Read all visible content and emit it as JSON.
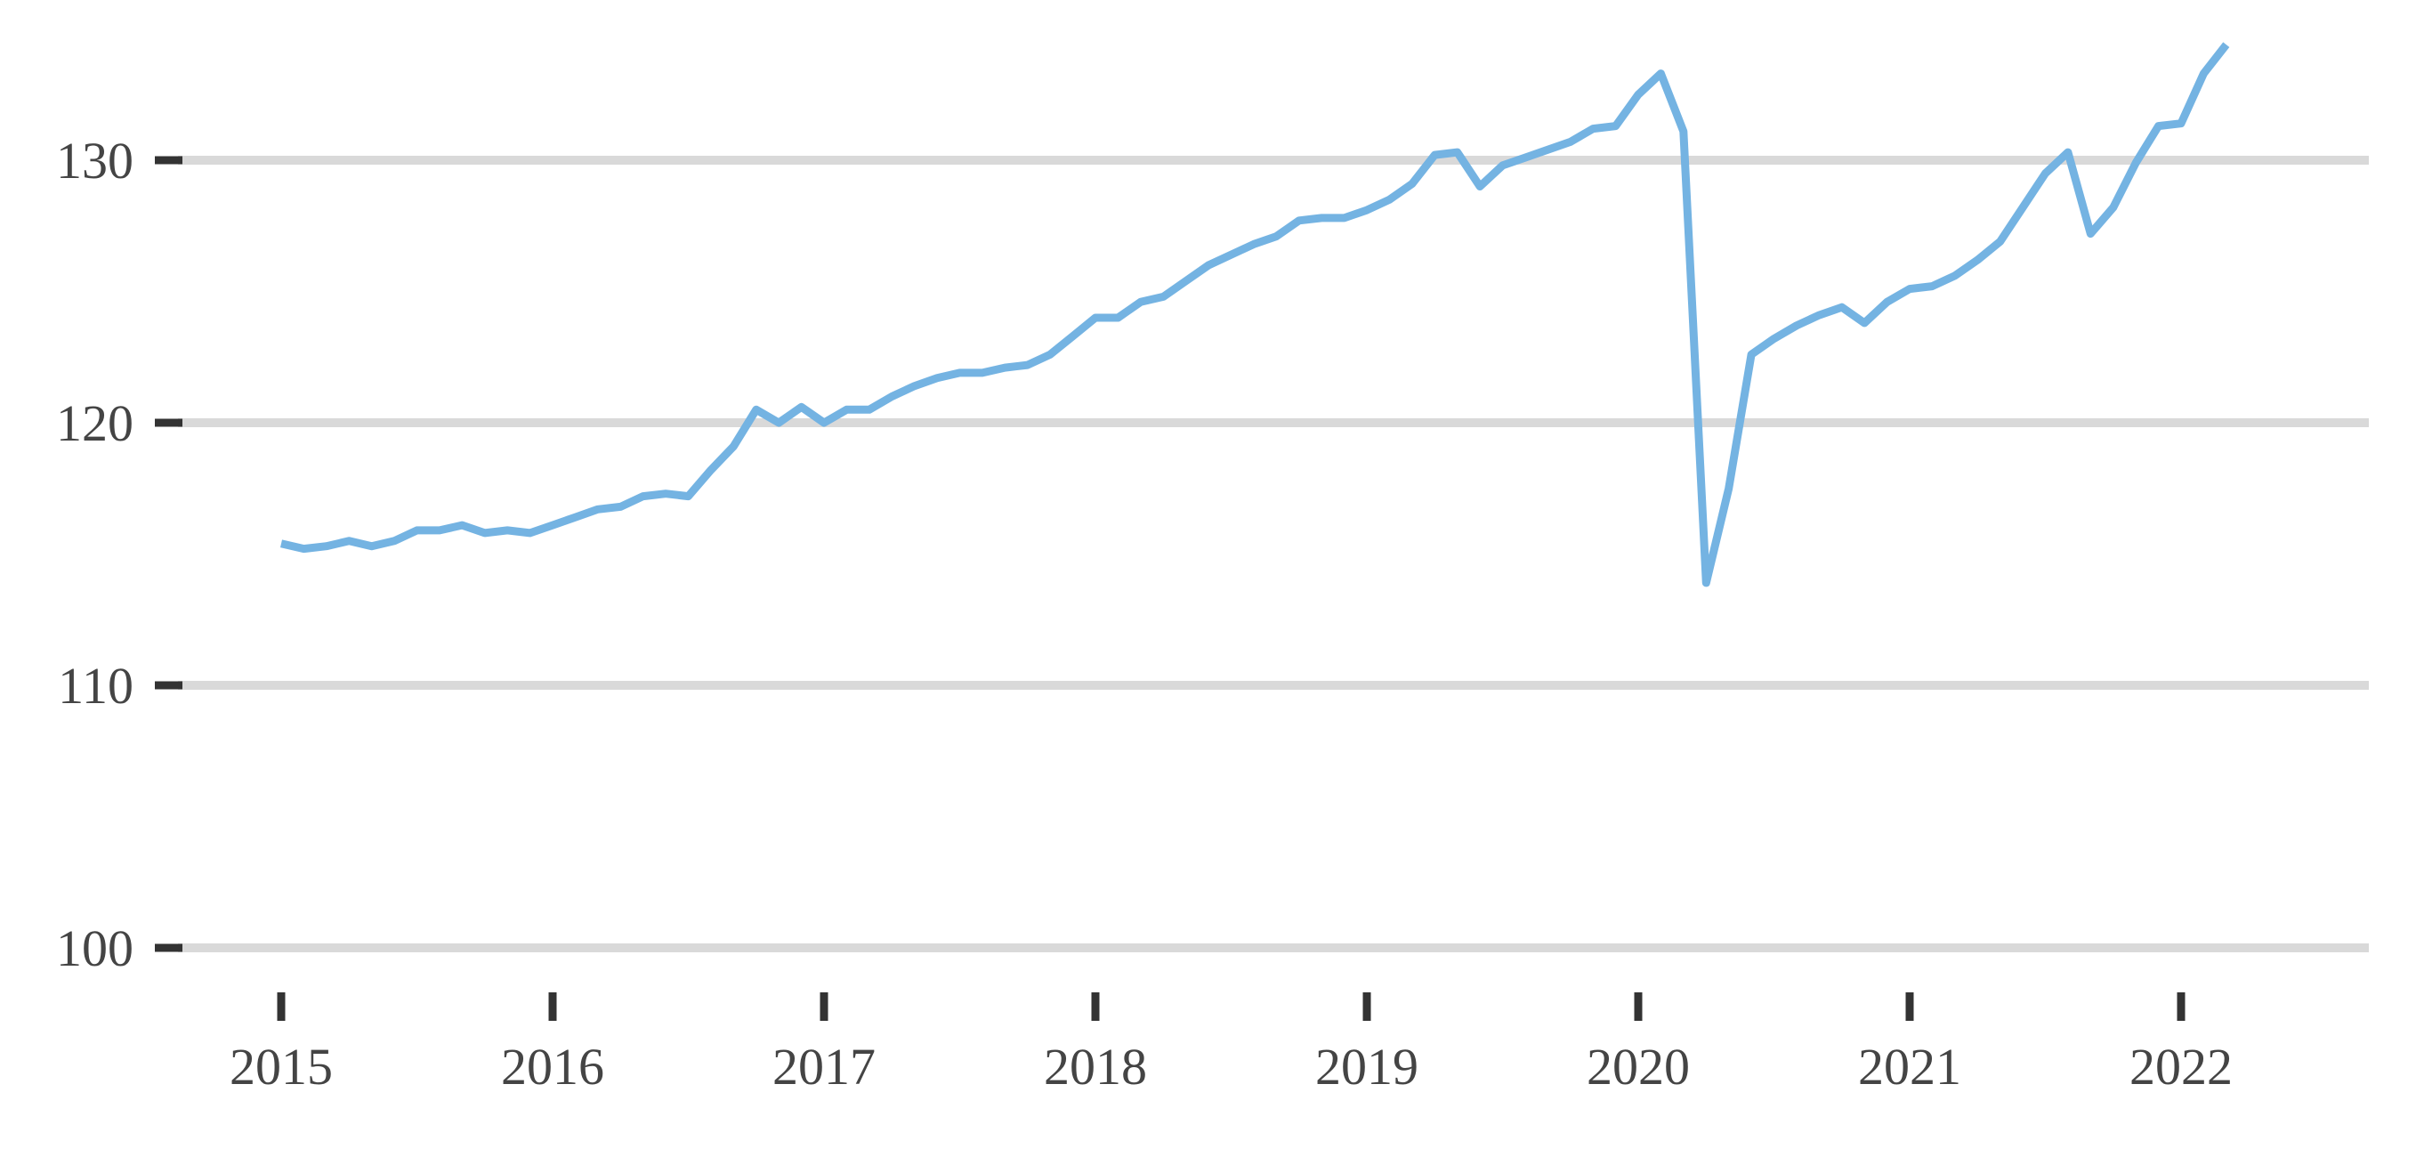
{
  "chart_data": {
    "type": "line",
    "title": "",
    "xlabel": "",
    "ylabel": "",
    "ylim": [
      100,
      135
    ],
    "yticks": [
      100,
      110,
      120,
      130
    ],
    "xticks": [
      "2015",
      "2016",
      "2017",
      "2018",
      "2019",
      "2020",
      "2021",
      "2022"
    ],
    "grid": "horizontal",
    "line_color": "#74b3e2",
    "grid_color": "#d9d9d9",
    "x_start": "2015-01",
    "x_frequency": "monthly",
    "series": [
      {
        "values": [
          115.4,
          115.2,
          115.3,
          115.5,
          115.3,
          115.5,
          115.9,
          115.9,
          116.1,
          115.8,
          115.9,
          115.8,
          116.1,
          116.4,
          116.7,
          116.8,
          117.2,
          117.3,
          117.2,
          118.2,
          119.1,
          120.5,
          120.0,
          120.6,
          120.0,
          120.5,
          120.5,
          121.0,
          121.4,
          121.7,
          121.9,
          121.9,
          122.1,
          122.2,
          122.6,
          123.3,
          124.0,
          124.0,
          124.6,
          124.8,
          125.4,
          126.0,
          126.4,
          126.8,
          127.1,
          127.7,
          127.8,
          127.8,
          128.1,
          128.5,
          129.1,
          130.2,
          130.3,
          129.0,
          129.8,
          130.1,
          130.4,
          130.7,
          131.2,
          131.3,
          132.5,
          133.3,
          131.1,
          113.9,
          117.5,
          122.6,
          123.2,
          123.7,
          124.1,
          124.4,
          123.8,
          124.6,
          125.1,
          125.2,
          125.6,
          126.2,
          126.9,
          128.2,
          129.5,
          130.3,
          127.2,
          128.2,
          129.9,
          131.3,
          131.4,
          133.3,
          134.4
        ]
      }
    ]
  }
}
